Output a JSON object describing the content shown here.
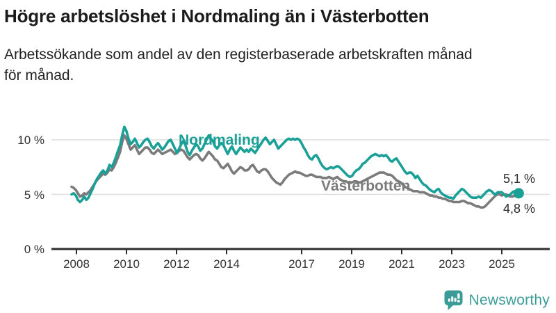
{
  "title": "Högre arbetslöshet i Nordmaling än i Västerbotten",
  "subtitle_line1": "Arbetssökande som andel av den registerbaserade arbetskraften månad",
  "subtitle_line2": "för månad.",
  "logo": {
    "name": "Newsworthy",
    "icon": "newsworthy-chart-bubble-icon",
    "color": "#3b9b97"
  },
  "chart_data": {
    "type": "line",
    "unit": "%",
    "x_start": "2008-01",
    "x_end": "2025-09",
    "x_resolution": "monthly",
    "ylim": [
      0,
      12
    ],
    "grid": "horizontal",
    "legend_position": "inline-labels",
    "y_ticks": [
      {
        "value": 0,
        "label": "0 %"
      },
      {
        "value": 5,
        "label": "5 %"
      },
      {
        "value": 10,
        "label": "10 %"
      }
    ],
    "x_ticks": [
      {
        "year": 2008,
        "label": "2008"
      },
      {
        "year": 2010,
        "label": "2010"
      },
      {
        "year": 2012,
        "label": "2012"
      },
      {
        "year": 2014,
        "label": "2014"
      },
      {
        "year": 2017,
        "label": "2017"
      },
      {
        "year": 2019,
        "label": "2019"
      },
      {
        "year": 2021,
        "label": "2021"
      },
      {
        "year": 2023,
        "label": "2023"
      },
      {
        "year": 2025,
        "label": "2025"
      }
    ],
    "series": [
      {
        "name": "Nordmaling",
        "color": "#1aa096",
        "end_label": "5,1 %",
        "latest_value": 5.1,
        "end_dot": true,
        "values": [
          5.0,
          5.1,
          4.9,
          4.5,
          4.3,
          4.5,
          4.8,
          4.5,
          4.7,
          5.1,
          5.5,
          6.0,
          6.4,
          6.7,
          7.0,
          7.2,
          6.9,
          7.2,
          7.7,
          7.5,
          7.9,
          8.4,
          9.0,
          9.5,
          10.4,
          11.2,
          10.8,
          10.1,
          9.6,
          9.8,
          10.1,
          9.7,
          9.3,
          9.5,
          9.8,
          10.0,
          10.1,
          9.8,
          9.4,
          9.2,
          9.5,
          9.7,
          9.4,
          9.1,
          9.3,
          9.6,
          9.9,
          10.0,
          9.6,
          9.2,
          8.8,
          9.2,
          9.6,
          9.9,
          9.5,
          8.9,
          8.6,
          9.0,
          9.3,
          9.6,
          9.4,
          9.0,
          9.2,
          9.6,
          10.0,
          10.4,
          10.1,
          9.9,
          9.4,
          9.2,
          9.5,
          9.7,
          9.5,
          9.1,
          8.7,
          9.1,
          9.4,
          9.0,
          8.7,
          9.0,
          9.3,
          9.1,
          8.9,
          9.1,
          8.9,
          9.2,
          9.0,
          8.8,
          9.1,
          9.4,
          9.7,
          10.0,
          10.2,
          9.9,
          9.6,
          9.8,
          10.0,
          9.6,
          9.2,
          9.4,
          9.6,
          9.8,
          10.0,
          10.1,
          10.0,
          10.1,
          10.0,
          10.1,
          10.0,
          9.7,
          9.3,
          9.0,
          8.6,
          8.3,
          8.2,
          8.5,
          8.6,
          8.3,
          7.9,
          7.6,
          7.4,
          7.3,
          7.4,
          7.5,
          7.4,
          7.5,
          7.6,
          7.5,
          7.3,
          7.1,
          6.9,
          6.7,
          6.6,
          6.7,
          7.0,
          7.2,
          7.3,
          7.5,
          7.8,
          7.9,
          8.1,
          8.3,
          8.5,
          8.6,
          8.7,
          8.6,
          8.5,
          8.6,
          8.5,
          8.6,
          8.4,
          8.1,
          8.0,
          8.2,
          8.3,
          8.0,
          7.7,
          7.4,
          7.1,
          6.9,
          7.0,
          7.0,
          6.8,
          6.5,
          6.7,
          6.4,
          6.1,
          5.9,
          5.8,
          5.6,
          5.4,
          5.3,
          5.2,
          5.4,
          5.5,
          5.2,
          5.0,
          4.9,
          4.8,
          4.7,
          4.7,
          4.6,
          4.9,
          5.1,
          5.3,
          5.5,
          5.4,
          5.2,
          5.0,
          4.8,
          4.7,
          4.7,
          4.7,
          4.8,
          4.7,
          4.9,
          5.1,
          5.3,
          5.4,
          5.3,
          5.1,
          5.0,
          5.2,
          5.2,
          5.2,
          5.0,
          4.8,
          4.9,
          5.0,
          5.2,
          5.3,
          5.2,
          5.1
        ]
      },
      {
        "name": "Västerbotten",
        "color": "#7b7b7b",
        "end_label": "4,8 %",
        "latest_value": 4.8,
        "end_dot": false,
        "values": [
          5.7,
          5.6,
          5.4,
          5.1,
          4.8,
          4.9,
          5.1,
          5.0,
          5.2,
          5.4,
          5.7,
          6.0,
          6.3,
          6.5,
          6.7,
          6.9,
          6.8,
          7.0,
          7.3,
          7.2,
          7.5,
          7.9,
          8.4,
          8.9,
          9.8,
          10.4,
          10.1,
          9.6,
          9.1,
          9.3,
          9.5,
          9.1,
          8.7,
          8.9,
          9.1,
          9.3,
          9.3,
          9.1,
          8.8,
          8.7,
          8.9,
          9.1,
          8.9,
          8.7,
          8.8,
          8.9,
          9.0,
          9.1,
          8.9,
          8.7,
          8.8,
          9.0,
          9.1,
          9.0,
          8.7,
          8.4,
          8.2,
          8.4,
          8.6,
          8.7,
          8.6,
          8.3,
          8.1,
          8.3,
          8.6,
          8.9,
          8.7,
          8.5,
          8.2,
          8.1,
          7.8,
          7.5,
          7.4,
          7.6,
          7.8,
          7.5,
          7.1,
          6.9,
          7.1,
          7.3,
          7.5,
          7.4,
          7.2,
          7.2,
          7.3,
          7.6,
          7.7,
          7.4,
          7.1,
          7.0,
          7.2,
          7.3,
          7.3,
          7.1,
          6.8,
          6.5,
          6.3,
          6.1,
          6.0,
          5.9,
          6.1,
          6.4,
          6.6,
          6.8,
          6.9,
          7.0,
          7.1,
          7.0,
          7.0,
          6.9,
          6.8,
          6.7,
          6.7,
          6.8,
          6.8,
          6.7,
          6.6,
          6.6,
          6.6,
          6.5,
          6.5,
          6.5,
          6.6,
          6.5,
          6.4,
          6.5,
          6.6,
          6.4,
          6.3,
          6.2,
          6.2,
          6.1,
          6.1,
          6.1,
          6.2,
          6.2,
          6.1,
          6.1,
          6.2,
          6.3,
          6.4,
          6.5,
          6.6,
          6.7,
          6.8,
          6.9,
          7.0,
          7.0,
          7.0,
          6.9,
          6.8,
          6.8,
          6.7,
          6.5,
          6.3,
          6.2,
          6.1,
          5.9,
          5.7,
          5.6,
          5.5,
          5.4,
          5.3,
          5.3,
          5.3,
          5.2,
          5.2,
          5.2,
          5.1,
          5.0,
          4.9,
          4.9,
          4.8,
          4.8,
          4.7,
          4.7,
          4.6,
          4.6,
          4.5,
          4.4,
          4.4,
          4.3,
          4.3,
          4.3,
          4.3,
          4.4,
          4.4,
          4.3,
          4.2,
          4.2,
          4.1,
          4.0,
          3.9,
          3.9,
          3.8,
          3.8,
          3.9,
          4.1,
          4.3,
          4.5,
          4.7,
          4.9,
          5.0,
          5.0,
          4.9,
          5.0,
          5.0,
          4.9,
          4.8,
          4.8,
          4.9,
          4.8,
          4.8
        ]
      }
    ],
    "styling": {
      "grid_color": "#dddddd",
      "axis_color": "#2e2e2e",
      "tick_label_color": "#333333"
    }
  }
}
